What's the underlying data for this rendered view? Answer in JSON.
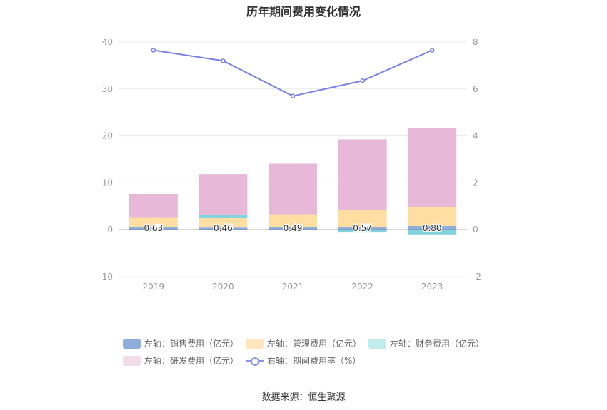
{
  "chart_data": {
    "type": "bar",
    "title": "历年期间费用变化情况",
    "categories": [
      "2019",
      "2020",
      "2021",
      "2022",
      "2023"
    ],
    "left_axis": {
      "ylim": [
        -10,
        40
      ],
      "ticks": [
        "-10",
        "0",
        "10",
        "20",
        "30",
        "40"
      ]
    },
    "right_axis": {
      "ylim": [
        -2,
        8
      ],
      "ticks": [
        "-2",
        "0",
        "2",
        "4",
        "6",
        "8"
      ]
    },
    "series": [
      {
        "name": "左轴：销售费用（亿元）",
        "type": "bar",
        "axis": "left",
        "color": "#8eaedb",
        "values": [
          0.63,
          0.46,
          0.49,
          0.57,
          0.8
        ]
      },
      {
        "name": "左轴：管理费用（亿元）",
        "type": "bar",
        "axis": "left",
        "color": "#ffdea4",
        "values": [
          1.9,
          2.0,
          2.8,
          3.6,
          4.1
        ]
      },
      {
        "name": "左轴：财务费用（亿元）",
        "type": "bar",
        "axis": "left",
        "color": "#82d3dc",
        "values": [
          -0.05,
          0.8,
          -0.05,
          -0.6,
          -1.0
        ]
      },
      {
        "name": "左轴：研发费用（亿元）",
        "type": "bar",
        "axis": "left",
        "color": "#e8b8d8",
        "values": [
          5.1,
          8.6,
          10.8,
          15.1,
          16.8
        ]
      },
      {
        "name": "右轴：期间费用率（%）",
        "type": "line",
        "axis": "right",
        "color": "#7c7fe6",
        "values": [
          7.65,
          7.2,
          5.7,
          6.35,
          7.65
        ]
      }
    ],
    "data_labels": [
      "0.63",
      "0.46",
      "0.49",
      "0.57",
      "0.80"
    ],
    "legend_position": "bottom",
    "grid": true
  },
  "legend": {
    "items": [
      {
        "label": "左轴：销售费用（亿元）",
        "color": "#8eaedb"
      },
      {
        "label": "左轴：管理费用（亿元）",
        "color": "#ffe5bd"
      },
      {
        "label": "左轴：财务费用（亿元）",
        "color": "#c2ebed"
      },
      {
        "label": "左轴：研发费用（亿元）",
        "color": "#f2dcea"
      },
      {
        "label": "右轴：期间费用率（%）",
        "color": "#8c93ee"
      }
    ]
  },
  "source": "数据来源：恒生聚源"
}
